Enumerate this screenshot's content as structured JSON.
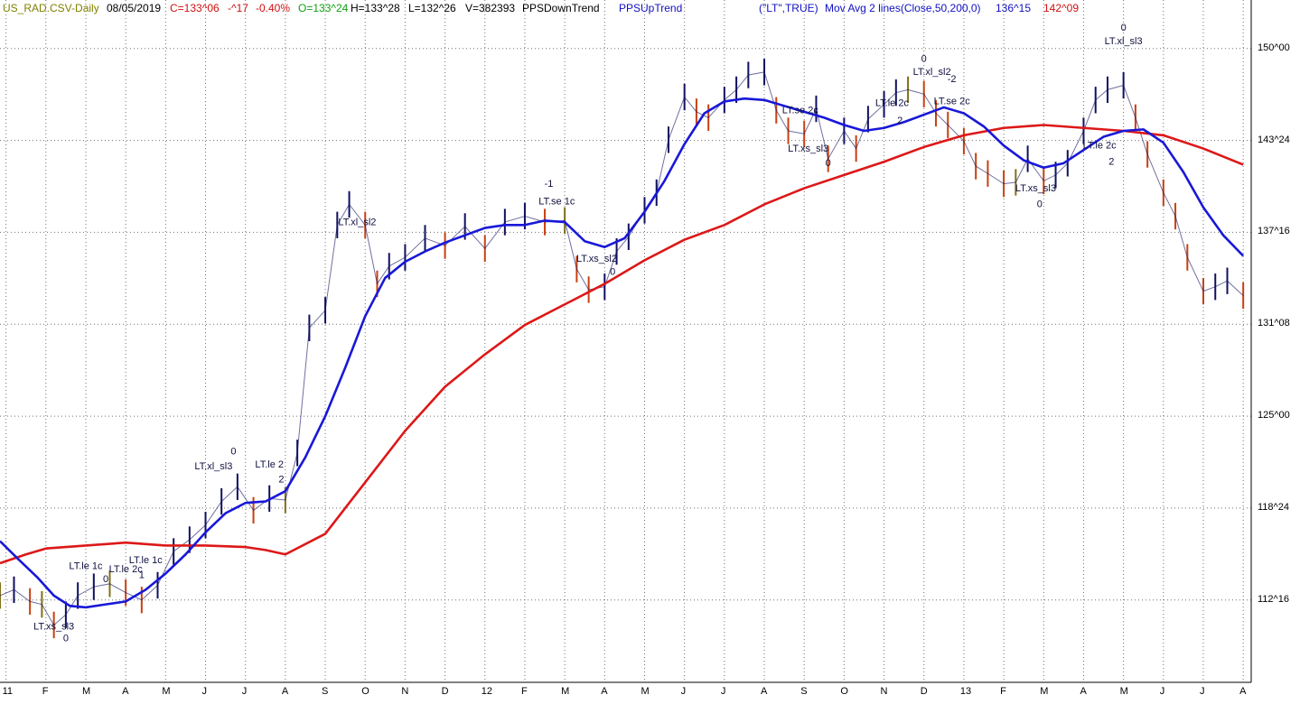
{
  "header": {
    "symbol": "US_RAD.CSV-Daily",
    "date": "08/05/2019",
    "close": "C=133^06",
    "change": "-^17",
    "pct": "-0.40%",
    "open": "O=133^24",
    "high": "H=133^28",
    "low": "L=132^26",
    "volume": "V=382393",
    "ind1": "PPSDownTrend",
    "ind2": "PPSUpTrend",
    "ind3": "(\"LT\",TRUE)",
    "ind4": "Mov Avg 2 lines(Close,50,200,0)",
    "ma50_val": "136^15",
    "ma200_val": "142^09"
  },
  "colors": {
    "ma50": "#1818d8",
    "ma200": "#dd1818",
    "up_bar": "#101060",
    "down_bar": "#c84010",
    "mid_bar": "#807018",
    "grid": "#707070",
    "background": "#ffffff"
  },
  "chart_data": {
    "type": "line",
    "title": "",
    "y_ticks": [
      "150^00",
      "143^24",
      "137^16",
      "131^08",
      "125^00",
      "118^24",
      "112^16"
    ],
    "y_tick_values": [
      150.0,
      143.75,
      137.5,
      131.25,
      125.0,
      118.75,
      112.5
    ],
    "ylim": [
      106.9,
      153.3
    ],
    "x_ticks": [
      "11",
      "F",
      "M",
      "A",
      "M",
      "J",
      "J",
      "A",
      "S",
      "O",
      "N",
      "D",
      "12",
      "F",
      "M",
      "A",
      "M",
      "J",
      "J",
      "A",
      "S",
      "O",
      "N",
      "D",
      "13",
      "F",
      "M",
      "A",
      "M",
      "J",
      "J",
      "A"
    ],
    "x_tick_positions": [
      0,
      1,
      2,
      3,
      4,
      5,
      6,
      7,
      8,
      9,
      10,
      11,
      12,
      13,
      14,
      15,
      16,
      17,
      18,
      19,
      20,
      21,
      22,
      23,
      24,
      25,
      26,
      27,
      28,
      29,
      30,
      31
    ],
    "xlim": [
      -0.15,
      31.2
    ],
    "grid": true,
    "series": [
      {
        "name": "Close",
        "x": [
          -0.15,
          0.2,
          0.6,
          0.9,
          1.2,
          1.5,
          1.8,
          2.2,
          2.6,
          3.0,
          3.4,
          3.8,
          4.2,
          4.6,
          5.0,
          5.4,
          5.8,
          6.2,
          6.6,
          7.0,
          7.3,
          7.6,
          8.0,
          8.3,
          8.6,
          9.0,
          9.3,
          9.6,
          10.0,
          10.5,
          11.0,
          11.5,
          12.0,
          12.5,
          13.0,
          13.5,
          14.0,
          14.3,
          14.6,
          15.0,
          15.3,
          15.6,
          16.0,
          16.3,
          16.6,
          17.0,
          17.3,
          17.6,
          18.0,
          18.3,
          18.6,
          19.0,
          19.3,
          19.6,
          20.0,
          20.3,
          20.6,
          21.0,
          21.3,
          21.6,
          22.0,
          22.3,
          22.6,
          23.0,
          23.3,
          23.6,
          24.0,
          24.3,
          24.6,
          25.0,
          25.3,
          25.6,
          26.0,
          26.3,
          26.6,
          27.0,
          27.3,
          27.6,
          28.0,
          28.3,
          28.6,
          29.0,
          29.3,
          29.6,
          30.0,
          30.3,
          30.6,
          31.0
        ],
        "y": [
          112.8,
          113.2,
          112.4,
          112.2,
          110.8,
          111.5,
          112.8,
          113.4,
          113.6,
          113.0,
          112.5,
          113.5,
          115.8,
          116.6,
          117.6,
          119.2,
          120.2,
          118.6,
          119.4,
          119.3,
          122.5,
          131.0,
          132.2,
          138.0,
          139.4,
          138.0,
          134.0,
          135.2,
          135.8,
          137.1,
          136.6,
          137.9,
          136.4,
          138.2,
          138.6,
          138.2,
          138.3,
          135.0,
          133.6,
          133.8,
          136.2,
          137.2,
          139.0,
          140.2,
          143.8,
          146.7,
          145.7,
          145.3,
          146.5,
          147.2,
          148.2,
          148.4,
          145.8,
          144.4,
          144.2,
          145.9,
          142.5,
          144.4,
          143.2,
          145.2,
          146.2,
          147.0,
          147.2,
          146.9,
          145.6,
          144.8,
          143.7,
          142.0,
          141.5,
          140.8,
          140.9,
          142.5,
          141.0,
          141.4,
          142.2,
          144.4,
          146.5,
          147.2,
          147.5,
          145.3,
          142.8,
          140.2,
          138.6,
          135.8,
          133.5,
          133.8,
          134.2,
          133.2
        ]
      },
      {
        "name": "Mov Avg 50",
        "x": [
          -0.15,
          0.3,
          0.8,
          1.2,
          1.6,
          2.0,
          2.5,
          3.0,
          3.5,
          4.0,
          4.5,
          5.0,
          5.5,
          6.0,
          6.5,
          7.0,
          7.5,
          8.0,
          8.5,
          9.0,
          9.5,
          10.0,
          10.5,
          11.0,
          11.5,
          12.0,
          12.5,
          13.0,
          13.5,
          14.0,
          14.5,
          15.0,
          15.5,
          16.0,
          16.5,
          17.0,
          17.5,
          18.0,
          18.5,
          19.0,
          19.5,
          20.0,
          20.5,
          21.0,
          21.5,
          22.0,
          22.5,
          23.0,
          23.5,
          24.0,
          24.5,
          25.0,
          25.5,
          26.0,
          26.5,
          27.0,
          27.5,
          28.0,
          28.5,
          29.0,
          29.5,
          30.0,
          30.5,
          31.0
        ],
        "y": [
          116.5,
          115.3,
          114.0,
          112.8,
          112.1,
          112.0,
          112.2,
          112.4,
          113.2,
          114.3,
          115.6,
          117.1,
          118.4,
          119.1,
          119.2,
          119.9,
          122.2,
          125.0,
          128.3,
          131.8,
          134.4,
          135.5,
          136.2,
          136.8,
          137.3,
          137.8,
          138.0,
          138.0,
          138.3,
          138.2,
          136.9,
          136.5,
          137.1,
          138.9,
          141.0,
          143.5,
          145.6,
          146.4,
          146.6,
          146.5,
          146.1,
          145.7,
          145.3,
          144.8,
          144.4,
          144.6,
          145.0,
          145.5,
          146.0,
          145.6,
          144.7,
          143.4,
          142.4,
          141.9,
          142.2,
          143.1,
          144.0,
          144.4,
          144.5,
          143.6,
          141.6,
          139.2,
          137.3,
          135.9
        ]
      },
      {
        "name": "Mov Avg 200",
        "x": [
          -0.15,
          0.5,
          1.0,
          2.0,
          3.0,
          4.0,
          5.0,
          6.0,
          6.5,
          7.0,
          8.0,
          9.0,
          10.0,
          11.0,
          12.0,
          13.0,
          14.0,
          15.0,
          16.0,
          17.0,
          18.0,
          19.0,
          20.0,
          21.0,
          22.0,
          23.0,
          24.0,
          25.0,
          26.0,
          27.0,
          28.0,
          29.0,
          30.0,
          31.0
        ],
        "y": [
          115.0,
          115.6,
          116.0,
          116.2,
          116.4,
          116.2,
          116.2,
          116.1,
          115.9,
          115.6,
          117.0,
          120.5,
          124.0,
          127.0,
          129.2,
          131.2,
          132.6,
          134.0,
          135.6,
          137.0,
          138.0,
          139.4,
          140.5,
          141.4,
          142.3,
          143.3,
          144.1,
          144.6,
          144.8,
          144.6,
          144.4,
          144.1,
          143.2,
          142.1
        ]
      }
    ],
    "annotations": [
      "LT.xs_sl3",
      "0",
      "LT.le 1c",
      "0",
      "LT.le 2c",
      "1",
      "LT.le 1c",
      "LT.xl_sl3",
      "LT.le 2",
      "2",
      "0",
      "LT.xl_sl2",
      "-1",
      "LT.se 1c",
      "LT.xs_sl2",
      "0",
      "LT.se 2c",
      "LT.xs_sl3",
      "0",
      "LT.le 2c",
      "2",
      "LT.xl_sl2",
      "0",
      "-2",
      "LT.se 2c",
      "LT.xs_sl3",
      "0",
      "LT.le 2c",
      "2",
      "LT.xl_sl3",
      "0"
    ]
  }
}
